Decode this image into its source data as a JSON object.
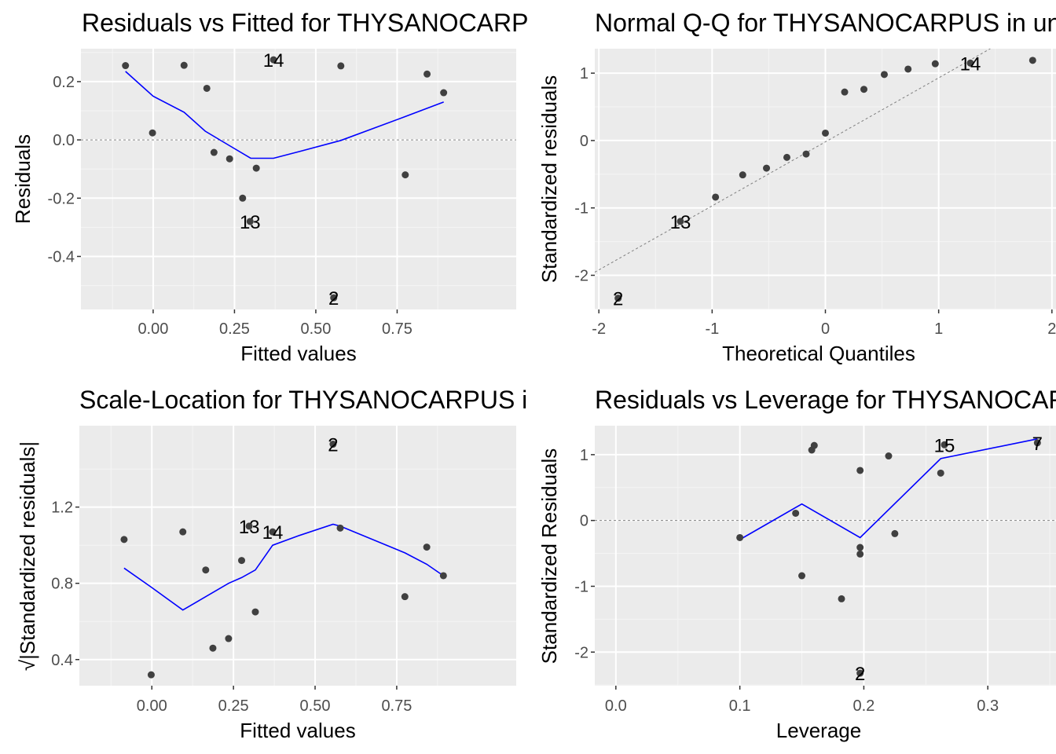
{
  "colors": {
    "panel_bg": "#ebebeb",
    "grid_major": "#ffffff",
    "grid_minor": "#f5f5f5",
    "point": "#404040",
    "smooth": "#0000ff",
    "reference": "#7f7f7f"
  },
  "chart_data": [
    {
      "type": "scatter",
      "panel": "top-left",
      "title": "Residuals vs Fitted for THYSANOCARPUS in unburned",
      "xlabel": "Fitted values",
      "ylabel": "Residuals",
      "xlim": [
        -0.222,
        1.116
      ],
      "ylim": [
        -0.582,
        0.313
      ],
      "x_ticks": [
        {
          "value": 0.0,
          "label": "0.00"
        },
        {
          "value": 0.25,
          "label": "0.25"
        },
        {
          "value": 0.5,
          "label": "0.50"
        },
        {
          "value": 0.75,
          "label": "0.75"
        }
      ],
      "y_ticks": [
        {
          "value": 0.2,
          "label": "0.2"
        },
        {
          "value": 0.0,
          "label": "0.0"
        },
        {
          "value": -0.2,
          "label": "-0.2"
        },
        {
          "value": -0.4,
          "label": "-0.4"
        }
      ],
      "reference_line": {
        "type": "hline",
        "value": 0
      },
      "points": [
        {
          "x": -0.085,
          "y": 0.255
        },
        {
          "x": -0.002,
          "y": 0.024
        },
        {
          "x": 0.095,
          "y": 0.256
        },
        {
          "x": 0.165,
          "y": 0.177
        },
        {
          "x": 0.187,
          "y": -0.043
        },
        {
          "x": 0.235,
          "y": -0.065
        },
        {
          "x": 0.275,
          "y": -0.2
        },
        {
          "x": 0.317,
          "y": -0.097
        },
        {
          "x": 0.298,
          "y": -0.28,
          "label": "13"
        },
        {
          "x": 0.37,
          "y": 0.275,
          "label": "14"
        },
        {
          "x": 0.555,
          "y": -0.542,
          "label": "2"
        },
        {
          "x": 0.577,
          "y": 0.254
        },
        {
          "x": 0.775,
          "y": -0.12
        },
        {
          "x": 0.842,
          "y": 0.226
        },
        {
          "x": 0.893,
          "y": 0.162
        }
      ],
      "smooth_line": [
        [
          -0.085,
          0.235
        ],
        [
          0.0,
          0.15
        ],
        [
          0.095,
          0.095
        ],
        [
          0.16,
          0.03
        ],
        [
          0.235,
          -0.02
        ],
        [
          0.3,
          -0.063
        ],
        [
          0.37,
          -0.063
        ],
        [
          0.45,
          -0.04
        ],
        [
          0.577,
          -0.002
        ],
        [
          0.775,
          0.08
        ],
        [
          0.893,
          0.13
        ]
      ]
    },
    {
      "type": "scatter",
      "panel": "top-right",
      "title": "Normal Q-Q for THYSANOCARPUS in unburned",
      "xlabel": "Theoretical Quantiles",
      "ylabel": "Standardized residuals",
      "xlim": [
        -2.036,
        2.036
      ],
      "ylim": [
        -2.507,
        1.363
      ],
      "x_ticks": [
        {
          "value": -2,
          "label": "-2"
        },
        {
          "value": -1,
          "label": "-1"
        },
        {
          "value": 0,
          "label": "0"
        },
        {
          "value": 1,
          "label": "1"
        },
        {
          "value": 2,
          "label": "2"
        }
      ],
      "y_ticks": [
        {
          "value": 1,
          "label": "1"
        },
        {
          "value": 0,
          "label": "0"
        },
        {
          "value": -1,
          "label": "-1"
        },
        {
          "value": -2,
          "label": "-2"
        }
      ],
      "reference_line": {
        "type": "abline",
        "intercept": -0.02,
        "slope": 0.95
      },
      "points": [
        {
          "x": -1.83,
          "y": -2.34,
          "label": "2"
        },
        {
          "x": -1.28,
          "y": -1.2,
          "label": "13"
        },
        {
          "x": -0.97,
          "y": -0.84
        },
        {
          "x": -0.73,
          "y": -0.51
        },
        {
          "x": -0.52,
          "y": -0.41
        },
        {
          "x": -0.34,
          "y": -0.25
        },
        {
          "x": -0.17,
          "y": -0.2
        },
        {
          "x": 0.0,
          "y": 0.11
        },
        {
          "x": 0.17,
          "y": 0.72
        },
        {
          "x": 0.34,
          "y": 0.76
        },
        {
          "x": 0.52,
          "y": 0.98
        },
        {
          "x": 0.73,
          "y": 1.06
        },
        {
          "x": 0.97,
          "y": 1.14
        },
        {
          "x": 1.28,
          "y": 1.15,
          "label": "14"
        },
        {
          "x": 1.83,
          "y": 1.19
        }
      ]
    },
    {
      "type": "scatter",
      "panel": "bottom-left",
      "title": "Scale-Location for THYSANOCARPUS in unburned",
      "xlabel": "Fitted values",
      "ylabel": "√|Standardized residuals|",
      "xlim": [
        -0.222,
        1.116
      ],
      "ylim": [
        0.263,
        1.627
      ],
      "x_ticks": [
        {
          "value": 0.0,
          "label": "0.00"
        },
        {
          "value": 0.25,
          "label": "0.25"
        },
        {
          "value": 0.5,
          "label": "0.50"
        },
        {
          "value": 0.75,
          "label": "0.75"
        }
      ],
      "y_ticks": [
        {
          "value": 1.2,
          "label": "1.2"
        },
        {
          "value": 0.8,
          "label": "0.8"
        },
        {
          "value": 0.4,
          "label": "0.4"
        }
      ],
      "points": [
        {
          "x": -0.085,
          "y": 1.03
        },
        {
          "x": -0.002,
          "y": 0.32
        },
        {
          "x": 0.095,
          "y": 1.07
        },
        {
          "x": 0.165,
          "y": 0.87
        },
        {
          "x": 0.187,
          "y": 0.46
        },
        {
          "x": 0.235,
          "y": 0.51
        },
        {
          "x": 0.275,
          "y": 0.92
        },
        {
          "x": 0.317,
          "y": 0.65
        },
        {
          "x": 0.298,
          "y": 1.1,
          "label": "13"
        },
        {
          "x": 0.37,
          "y": 1.07,
          "label": "14"
        },
        {
          "x": 0.555,
          "y": 1.53,
          "label": "2"
        },
        {
          "x": 0.577,
          "y": 1.09
        },
        {
          "x": 0.775,
          "y": 0.73
        },
        {
          "x": 0.842,
          "y": 0.99
        },
        {
          "x": 0.893,
          "y": 0.84
        }
      ],
      "smooth_line": [
        [
          -0.085,
          0.88
        ],
        [
          -0.002,
          0.78
        ],
        [
          0.095,
          0.66
        ],
        [
          0.165,
          0.73
        ],
        [
          0.235,
          0.8
        ],
        [
          0.275,
          0.83
        ],
        [
          0.317,
          0.87
        ],
        [
          0.37,
          1.0
        ],
        [
          0.45,
          1.05
        ],
        [
          0.555,
          1.11
        ],
        [
          0.577,
          1.1
        ],
        [
          0.775,
          0.96
        ],
        [
          0.842,
          0.9
        ],
        [
          0.893,
          0.84
        ]
      ]
    },
    {
      "type": "scatter",
      "panel": "bottom-right",
      "title": "Residuals vs Leverage for THYSANOCARPUS in unburned",
      "xlabel": "Leverage",
      "ylabel": "Standardized Residuals",
      "xlim": [
        -0.017,
        0.355
      ],
      "ylim": [
        -2.51,
        1.44
      ],
      "x_ticks": [
        {
          "value": 0.0,
          "label": "0.0"
        },
        {
          "value": 0.1,
          "label": "0.1"
        },
        {
          "value": 0.2,
          "label": "0.2"
        },
        {
          "value": 0.3,
          "label": "0.3"
        }
      ],
      "y_ticks": [
        {
          "value": 1,
          "label": "1"
        },
        {
          "value": 0,
          "label": "0"
        },
        {
          "value": -1,
          "label": "-1"
        },
        {
          "value": -2,
          "label": "-2"
        }
      ],
      "reference_line": {
        "type": "hline",
        "value": 0
      },
      "points": [
        {
          "x": 0.1,
          "y": -0.26
        },
        {
          "x": 0.145,
          "y": 0.11
        },
        {
          "x": 0.15,
          "y": -0.84
        },
        {
          "x": 0.158,
          "y": 1.07
        },
        {
          "x": 0.16,
          "y": 1.14
        },
        {
          "x": 0.182,
          "y": -1.19
        },
        {
          "x": 0.197,
          "y": 0.76
        },
        {
          "x": 0.197,
          "y": -0.41
        },
        {
          "x": 0.197,
          "y": -0.51
        },
        {
          "x": 0.197,
          "y": -2.32,
          "label": "2"
        },
        {
          "x": 0.22,
          "y": 0.98
        },
        {
          "x": 0.225,
          "y": -0.2
        },
        {
          "x": 0.262,
          "y": 0.72
        },
        {
          "x": 0.265,
          "y": 1.15,
          "label": "15"
        },
        {
          "x": 0.34,
          "y": 1.18,
          "label": "7"
        }
      ],
      "smooth_line": [
        [
          0.1,
          -0.29
        ],
        [
          0.15,
          0.25
        ],
        [
          0.197,
          -0.26
        ],
        [
          0.262,
          0.94
        ],
        [
          0.34,
          1.24
        ]
      ]
    }
  ]
}
